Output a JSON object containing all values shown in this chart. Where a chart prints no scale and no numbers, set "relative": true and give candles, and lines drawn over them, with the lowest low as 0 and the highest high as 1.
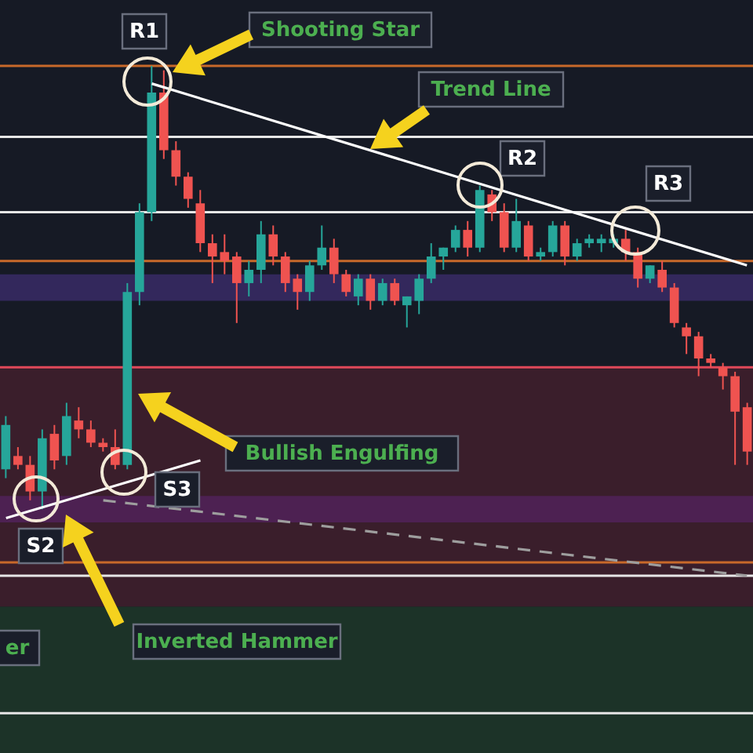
{
  "chart_data": {
    "type": "candlestick",
    "relative": true,
    "categories": [
      null,
      null,
      null,
      null,
      null,
      null,
      null,
      null,
      null,
      null,
      null,
      null,
      null,
      null,
      null,
      null,
      null,
      null,
      null,
      null,
      null,
      null,
      null,
      null,
      null,
      null,
      null,
      null,
      null,
      null,
      null,
      null,
      null,
      null,
      null,
      null,
      null,
      null,
      null,
      null,
      null,
      null,
      null,
      null,
      null,
      null,
      null,
      null,
      null,
      null,
      null,
      null,
      null,
      null,
      null,
      null,
      null,
      null,
      null,
      null,
      null,
      null
    ],
    "ohlc": [
      [
        0.09,
        0.21,
        0.07,
        0.19
      ],
      [
        0.12,
        0.14,
        0.09,
        0.1
      ],
      [
        0.1,
        0.12,
        0.02,
        0.04
      ],
      [
        0.04,
        0.18,
        0,
        0.16
      ],
      [
        0.17,
        0.19,
        0.09,
        0.11
      ],
      [
        0.12,
        0.24,
        0.1,
        0.21
      ],
      [
        0.2,
        0.23,
        0.16,
        0.18
      ],
      [
        0.18,
        0.2,
        0.14,
        0.15
      ],
      [
        0.15,
        0.16,
        0.13,
        0.14
      ],
      [
        0.14,
        0.18,
        0.09,
        0.1
      ],
      [
        0.1,
        0.51,
        0.09,
        0.49
      ],
      [
        0.49,
        0.69,
        0.46,
        0.67
      ],
      [
        0.67,
        1,
        0.65,
        0.94
      ],
      [
        0.94,
        0.99,
        0.79,
        0.81
      ],
      [
        0.81,
        0.83,
        0.73,
        0.75
      ],
      [
        0.75,
        0.76,
        0.68,
        0.7
      ],
      [
        0.69,
        0.72,
        0.58,
        0.6
      ],
      [
        0.6,
        0.62,
        0.51,
        0.57
      ],
      [
        0.58,
        0.62,
        0.53,
        0.56
      ],
      [
        0.57,
        0.58,
        0.42,
        0.51
      ],
      [
        0.51,
        0.56,
        0.48,
        0.54
      ],
      [
        0.54,
        0.65,
        0.51,
        0.62
      ],
      [
        0.62,
        0.64,
        0.55,
        0.57
      ],
      [
        0.57,
        0.58,
        0.49,
        0.51
      ],
      [
        0.52,
        0.53,
        0.45,
        0.49
      ],
      [
        0.49,
        0.56,
        0.47,
        0.55
      ],
      [
        0.55,
        0.64,
        0.54,
        0.59
      ],
      [
        0.59,
        0.61,
        0.51,
        0.53
      ],
      [
        0.53,
        0.54,
        0.48,
        0.49
      ],
      [
        0.48,
        0.53,
        0.46,
        0.52
      ],
      [
        0.52,
        0.53,
        0.45,
        0.47
      ],
      [
        0.47,
        0.52,
        0.46,
        0.51
      ],
      [
        0.51,
        0.52,
        0.46,
        0.47
      ],
      [
        0.46,
        0.48,
        0.41,
        0.48
      ],
      [
        0.47,
        0.53,
        0.44,
        0.52
      ],
      [
        0.52,
        0.6,
        0.51,
        0.57
      ],
      [
        0.57,
        0.59,
        0.54,
        0.59
      ],
      [
        0.59,
        0.64,
        0.58,
        0.63
      ],
      [
        0.63,
        0.65,
        0.57,
        0.59
      ],
      [
        0.59,
        0.73,
        0.58,
        0.72
      ],
      [
        0.71,
        0.72,
        0.65,
        0.67
      ],
      [
        0.67,
        0.69,
        0.58,
        0.59
      ],
      [
        0.59,
        0.7,
        0.58,
        0.65
      ],
      [
        0.64,
        0.65,
        0.56,
        0.57
      ],
      [
        0.57,
        0.59,
        0.56,
        0.58
      ],
      [
        0.58,
        0.65,
        0.57,
        0.64
      ],
      [
        0.64,
        0.65,
        0.55,
        0.57
      ],
      [
        0.57,
        0.61,
        0.56,
        0.6
      ],
      [
        0.6,
        0.62,
        0.59,
        0.61
      ],
      [
        0.6,
        0.62,
        0.58,
        0.61
      ],
      [
        0.6,
        0.62,
        0.59,
        0.61
      ],
      [
        0.61,
        0.63,
        0.56,
        0.58
      ],
      [
        0.58,
        0.59,
        0.5,
        0.52
      ],
      [
        0.52,
        0.55,
        0.51,
        0.55
      ],
      [
        0.54,
        0.56,
        0.49,
        0.5
      ],
      [
        0.5,
        0.51,
        0.41,
        0.42
      ],
      [
        0.41,
        0.42,
        0.35,
        0.39
      ],
      [
        0.39,
        0.4,
        0.3,
        0.34
      ],
      [
        0.34,
        0.35,
        0.32,
        0.33
      ],
      [
        0.32,
        0.33,
        0.27,
        0.3
      ],
      [
        0.3,
        0.31,
        0.1,
        0.22
      ],
      [
        0.23,
        0.24,
        0.1,
        0.13
      ]
    ],
    "colors": [
      "#26a69a",
      "#ef5350",
      "#ef5350",
      "#26a69a",
      "#ef5350",
      "#26a69a",
      "#ef5350",
      "#ef5350",
      "#ef5350",
      "#ef5350",
      "#26a69a",
      "#26a69a",
      "#26a69a",
      "#ef5350",
      "#ef5350",
      "#ef5350",
      "#ef5350",
      "#ef5350",
      "#ef5350",
      "#ef5350",
      "#26a69a",
      "#26a69a",
      "#ef5350",
      "#ef5350",
      "#ef5350",
      "#26a69a",
      "#26a69a",
      "#ef5350",
      "#ef5350",
      "#26a69a",
      "#ef5350",
      "#26a69a",
      "#ef5350",
      "#26a69a",
      "#26a69a",
      "#26a69a",
      "#26a69a",
      "#26a69a",
      "#ef5350",
      "#26a69a",
      "#ef5350",
      "#ef5350",
      "#26a69a",
      "#ef5350",
      "#26a69a",
      "#26a69a",
      "#ef5350",
      "#26a69a",
      "#26a69a",
      "#26a69a",
      "#26a69a",
      "#ef5350",
      "#ef5350",
      "#26a69a",
      "#ef5350",
      "#ef5350",
      "#ef5350",
      "#ef5350",
      "#ef5350",
      "#ef5350",
      "#ef5350",
      "#ef5350"
    ],
    "series": [
      {
        "type": "line",
        "color": "#ffffff",
        "values": [
          null,
          null,
          null,
          null,
          null,
          null,
          null,
          null,
          null,
          null,
          null,
          null,
          0.96,
          null,
          null,
          null,
          null,
          null,
          null,
          null,
          null,
          null,
          null,
          null,
          null,
          null,
          null,
          null,
          null,
          null,
          null,
          null,
          null,
          null,
          null,
          null,
          null,
          null,
          null,
          null,
          null,
          null,
          null,
          null,
          null,
          null,
          null,
          null,
          null,
          null,
          null,
          null,
          null,
          null,
          null,
          null,
          null,
          null,
          null,
          null,
          null,
          0.55
        ]
      },
      {
        "type": "line",
        "color": "#ffffff",
        "values": [
          -0.02,
          null,
          null,
          null,
          null,
          null,
          null,
          null,
          null,
          null,
          null,
          null,
          null,
          null,
          null,
          null,
          0.11,
          null,
          null,
          null,
          null,
          null,
          null,
          null,
          null,
          null,
          null,
          null,
          null,
          null,
          null,
          null,
          null,
          null,
          null,
          null,
          null,
          null,
          null,
          null,
          null,
          null,
          null,
          null,
          null,
          null,
          null,
          null,
          null,
          null,
          null,
          null,
          null,
          null,
          null,
          null,
          null,
          null,
          null,
          null,
          null,
          null
        ]
      },
      {
        "type": "line",
        "color": "#9e9e9e",
        "line_style": "dashed",
        "values": [
          null,
          null,
          null,
          null,
          null,
          null,
          null,
          null,
          0.02,
          null,
          null,
          null,
          null,
          null,
          null,
          null,
          null,
          null,
          null,
          null,
          null,
          null,
          null,
          null,
          null,
          null,
          null,
          null,
          null,
          null,
          null,
          null,
          null,
          null,
          null,
          null,
          null,
          null,
          null,
          null,
          null,
          null,
          null,
          null,
          null,
          null,
          null,
          null,
          null,
          null,
          null,
          null,
          null,
          null,
          null,
          null,
          null,
          null,
          null,
          null,
          null,
          -0.15
        ]
      }
    ],
    "bands": [
      {
        "axis": "y",
        "from": 0.53,
        "to": 0.47,
        "color": "#33285c"
      },
      {
        "axis": "y",
        "from": 0.32,
        "to": -0.22,
        "color": "#3a1e2b"
      },
      {
        "axis": "y",
        "from": 0.03,
        "to": -0.03,
        "color": "#4d2152"
      },
      {
        "axis": "y",
        "from": -0.22,
        "to": -0.55,
        "color": "#1c3328"
      }
    ],
    "ref_lines": [
      {
        "axis": "y",
        "value": 1,
        "color": "#c8692a"
      },
      {
        "axis": "y",
        "value": 0.84,
        "color": "#e6e6e6"
      },
      {
        "axis": "y",
        "value": 0.67,
        "color": "#e6e6e6"
      },
      {
        "axis": "y",
        "value": 0.56,
        "color": "#c8692a"
      },
      {
        "axis": "y",
        "value": 0.32,
        "color": "#e0485a"
      },
      {
        "axis": "y",
        "value": -0.12,
        "color": "#c8692a"
      },
      {
        "axis": "y",
        "value": -0.15,
        "color": "#e6e6e6"
      },
      {
        "axis": "y",
        "value": -0.46,
        "color": "#e6e6e6"
      }
    ],
    "annotations": [
      "R1",
      "Shooting Star",
      "Trend Line",
      "R2",
      "R3",
      "Bullish Engulfing",
      "S3",
      "S2",
      "Inverted Hammer",
      "er"
    ]
  }
}
